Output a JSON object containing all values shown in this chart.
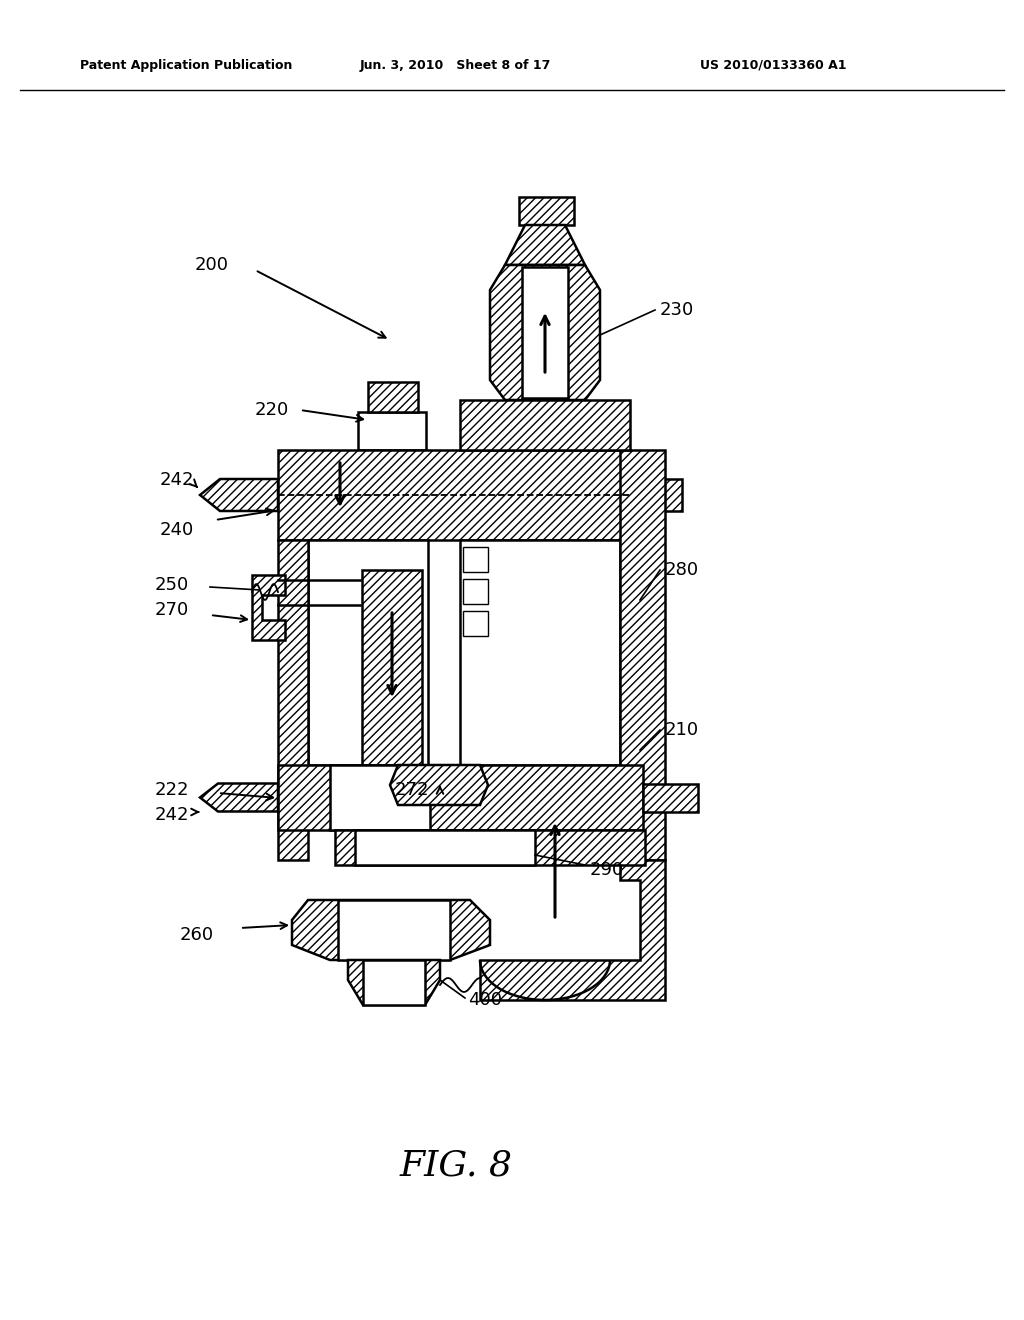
{
  "header_left": "Patent Application Publication",
  "header_mid": "Jun. 3, 2010   Sheet 8 of 17",
  "header_right": "US 2010/0133360 A1",
  "figure_label": "FIG. 8",
  "background_color": "#ffffff",
  "line_color": "#000000"
}
